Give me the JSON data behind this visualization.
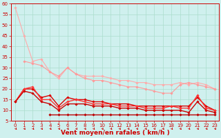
{
  "xlabel": "Vent moyen/en rafales ( km/h )",
  "bg_color": "#cff0ee",
  "grid_color": "#aaddcc",
  "xlim": [
    -0.5,
    23.5
  ],
  "ylim": [
    5,
    60
  ],
  "yticks": [
    5,
    10,
    15,
    20,
    25,
    30,
    35,
    40,
    45,
    50,
    55,
    60
  ],
  "xticks": [
    0,
    1,
    2,
    3,
    4,
    5,
    6,
    7,
    8,
    9,
    10,
    11,
    12,
    13,
    14,
    15,
    16,
    17,
    18,
    19,
    20,
    21,
    22,
    23
  ],
  "lines": [
    {
      "x": [
        0,
        1,
        2,
        3,
        4,
        5,
        6,
        7,
        8,
        9,
        10,
        11,
        12,
        13,
        14,
        15,
        16,
        17,
        18,
        19,
        20,
        21,
        22,
        23
      ],
      "y": [
        58,
        45,
        33,
        34,
        28,
        25,
        30,
        27,
        26,
        26,
        26,
        25,
        24,
        24,
        23,
        23,
        22,
        22,
        22,
        23,
        22,
        23,
        22,
        20
      ],
      "color": "#ffaaaa",
      "lw": 0.8,
      "marker": "D",
      "ms": 1.8
    },
    {
      "x": [
        1,
        2,
        3,
        4,
        5,
        6,
        7,
        8,
        9,
        10,
        11,
        12,
        13,
        14,
        15,
        16,
        17,
        18,
        19,
        20,
        21,
        22,
        23
      ],
      "y": [
        33,
        32,
        31,
        28,
        26,
        30,
        27,
        25,
        24,
        24,
        23,
        22,
        21,
        21,
        20,
        19,
        18,
        18,
        22,
        23,
        22,
        21,
        20
      ],
      "color": "#ff9999",
      "lw": 0.8,
      "marker": "D",
      "ms": 1.8
    },
    {
      "x": [
        0,
        1,
        2,
        3,
        4,
        5,
        6,
        7,
        8,
        9,
        10,
        11,
        12,
        13,
        14,
        15,
        16,
        17,
        18,
        19,
        20,
        21,
        22,
        23
      ],
      "y": [
        14,
        20,
        20,
        16,
        17,
        12,
        16,
        15,
        15,
        14,
        14,
        13,
        13,
        13,
        12,
        12,
        12,
        12,
        12,
        12,
        12,
        16,
        12,
        10
      ],
      "color": "#dd0000",
      "lw": 1.0,
      "marker": "D",
      "ms": 1.8
    },
    {
      "x": [
        0,
        1,
        2,
        3,
        4,
        5,
        6,
        7,
        8,
        9,
        10,
        11,
        12,
        13,
        14,
        15,
        16,
        17,
        18,
        19,
        20,
        21,
        22,
        23
      ],
      "y": [
        14,
        20,
        21,
        15,
        15,
        11,
        14,
        15,
        14,
        13,
        13,
        13,
        12,
        12,
        12,
        11,
        11,
        11,
        12,
        11,
        11,
        17,
        11,
        10
      ],
      "color": "#ff3333",
      "lw": 1.0,
      "marker": "D",
      "ms": 1.8
    },
    {
      "x": [
        0,
        1,
        2,
        3,
        4,
        5,
        6,
        7,
        8,
        9,
        10,
        11,
        12,
        13,
        14,
        15,
        16,
        17,
        18,
        19,
        20,
        21,
        22,
        23
      ],
      "y": [
        14,
        19,
        18,
        14,
        13,
        10,
        13,
        13,
        13,
        12,
        12,
        12,
        11,
        11,
        11,
        10,
        10,
        10,
        10,
        10,
        9,
        14,
        10,
        9
      ],
      "color": "#cc0000",
      "lw": 1.0,
      "marker": "D",
      "ms": 1.8
    },
    {
      "x": [
        4,
        5,
        6,
        7,
        8,
        9,
        10,
        11,
        12,
        13,
        14,
        15,
        16,
        17,
        18,
        19,
        20,
        21,
        22,
        23
      ],
      "y": [
        8,
        8,
        8,
        8,
        8,
        8,
        8,
        8,
        8,
        8,
        8,
        8,
        8,
        8,
        8,
        8,
        8,
        8,
        8,
        8
      ],
      "color": "#bb0000",
      "lw": 1.0,
      "marker": "D",
      "ms": 1.8
    }
  ],
  "xlabel_color": "#cc0000",
  "xlabel_fontsize": 6.5,
  "tick_fontsize": 5.0,
  "tick_color": "#cc0000",
  "axis_color": "#cc0000"
}
